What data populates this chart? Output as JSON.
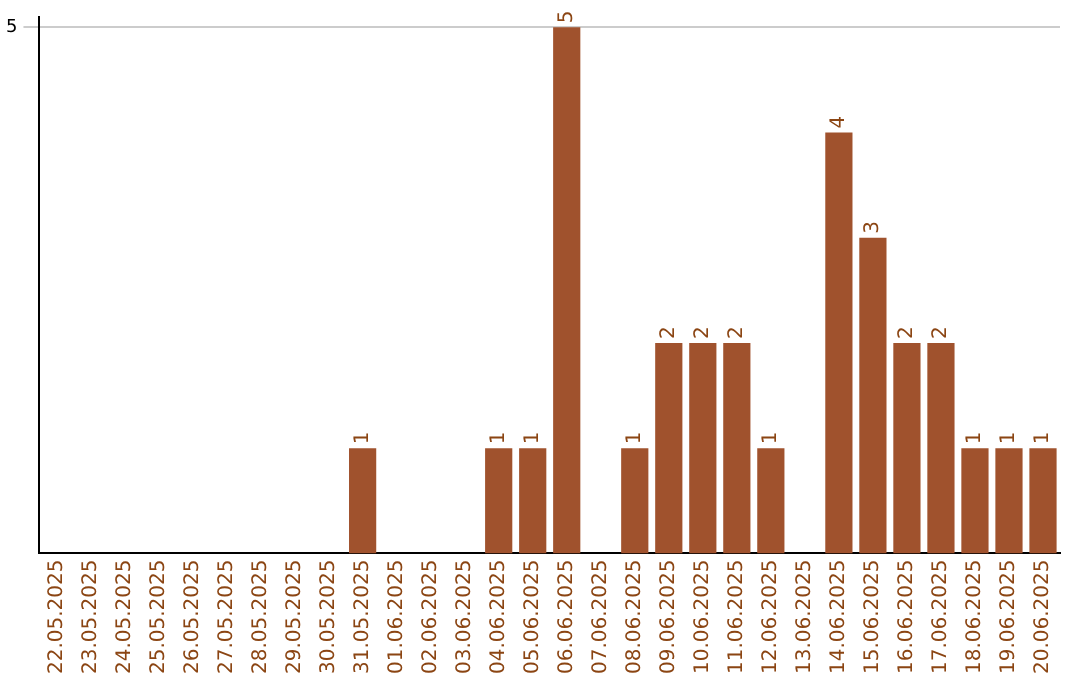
{
  "chart_data": {
    "type": "bar",
    "categories": [
      "22.05.2025",
      "23.05.2025",
      "24.05.2025",
      "25.05.2025",
      "26.05.2025",
      "27.05.2025",
      "28.05.2025",
      "29.05.2025",
      "30.05.2025",
      "31.05.2025",
      "01.06.2025",
      "02.06.2025",
      "03.06.2025",
      "04.06.2025",
      "05.06.2025",
      "06.06.2025",
      "07.06.2025",
      "08.06.2025",
      "09.06.2025",
      "10.06.2025",
      "11.06.2025",
      "12.06.2025",
      "13.06.2025",
      "14.06.2025",
      "15.06.2025",
      "16.06.2025",
      "17.06.2025",
      "18.06.2025",
      "19.06.2025",
      "20.06.2025"
    ],
    "values": [
      0,
      0,
      0,
      0,
      0,
      0,
      0,
      0,
      0,
      1,
      0,
      0,
      0,
      1,
      1,
      5,
      0,
      1,
      2,
      2,
      2,
      1,
      0,
      4,
      3,
      2,
      2,
      1,
      1,
      1
    ],
    "value_labels": [
      null,
      null,
      null,
      null,
      null,
      null,
      null,
      null,
      null,
      "1",
      null,
      null,
      null,
      "1",
      "1",
      "5",
      null,
      "1",
      "2",
      "2",
      "2",
      "1",
      null,
      "4",
      "3",
      "2",
      "2",
      "1",
      "1",
      "1"
    ],
    "color": "#a0522d",
    "ylim": [
      0,
      5.1
    ],
    "yticks": [
      5
    ],
    "grid": "y",
    "legend": false
  }
}
